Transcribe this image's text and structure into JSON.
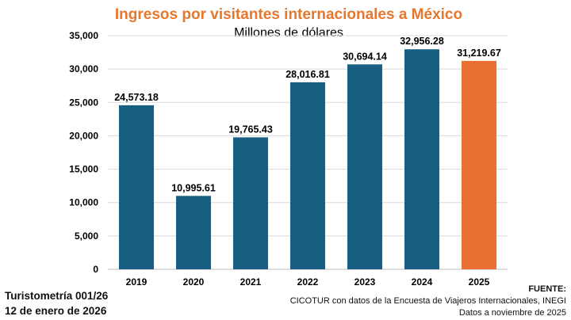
{
  "chart_data": {
    "type": "bar",
    "title": "Ingresos por visitantes internacionales a México",
    "subtitle": "Millones de dólares",
    "categories": [
      "2019",
      "2020",
      "2021",
      "2022",
      "2023",
      "2024",
      "2025"
    ],
    "values": [
      24573.18,
      10995.61,
      19765.43,
      28016.81,
      30694.14,
      32956.28,
      31219.67
    ],
    "data_labels": [
      "24,573.18",
      "10,995.61",
      "19,765.43",
      "28,016.81",
      "30,694.14",
      "32,956.28",
      "31,219.67"
    ],
    "ylim": [
      0,
      35000
    ],
    "yticks": [
      0,
      5000,
      10000,
      15000,
      20000,
      25000,
      30000,
      35000
    ],
    "ytick_labels": [
      "0",
      "5,000",
      "10,000",
      "15,000",
      "20,000",
      "25,000",
      "30,000",
      "35,000"
    ],
    "xlabel": "",
    "ylabel": "",
    "grid": true,
    "bar_colors": [
      "#175e82",
      "#175e82",
      "#175e82",
      "#175e82",
      "#175e82",
      "#175e82",
      "#e97032"
    ]
  },
  "colors": {
    "title": "#e8772e",
    "primary_bar": "#175e82",
    "highlight_bar": "#e97032",
    "grid": "#d9d9d9"
  },
  "footer": {
    "left_line1": "Turistometría 001/26",
    "left_line2": "12 de enero de 2026",
    "source_label": "FUENTE:",
    "source_line1": "CICOTUR con datos de la Encuesta de Viajeros Internacionales, INEGI",
    "source_line2": "Datos a noviembre de 2025"
  }
}
